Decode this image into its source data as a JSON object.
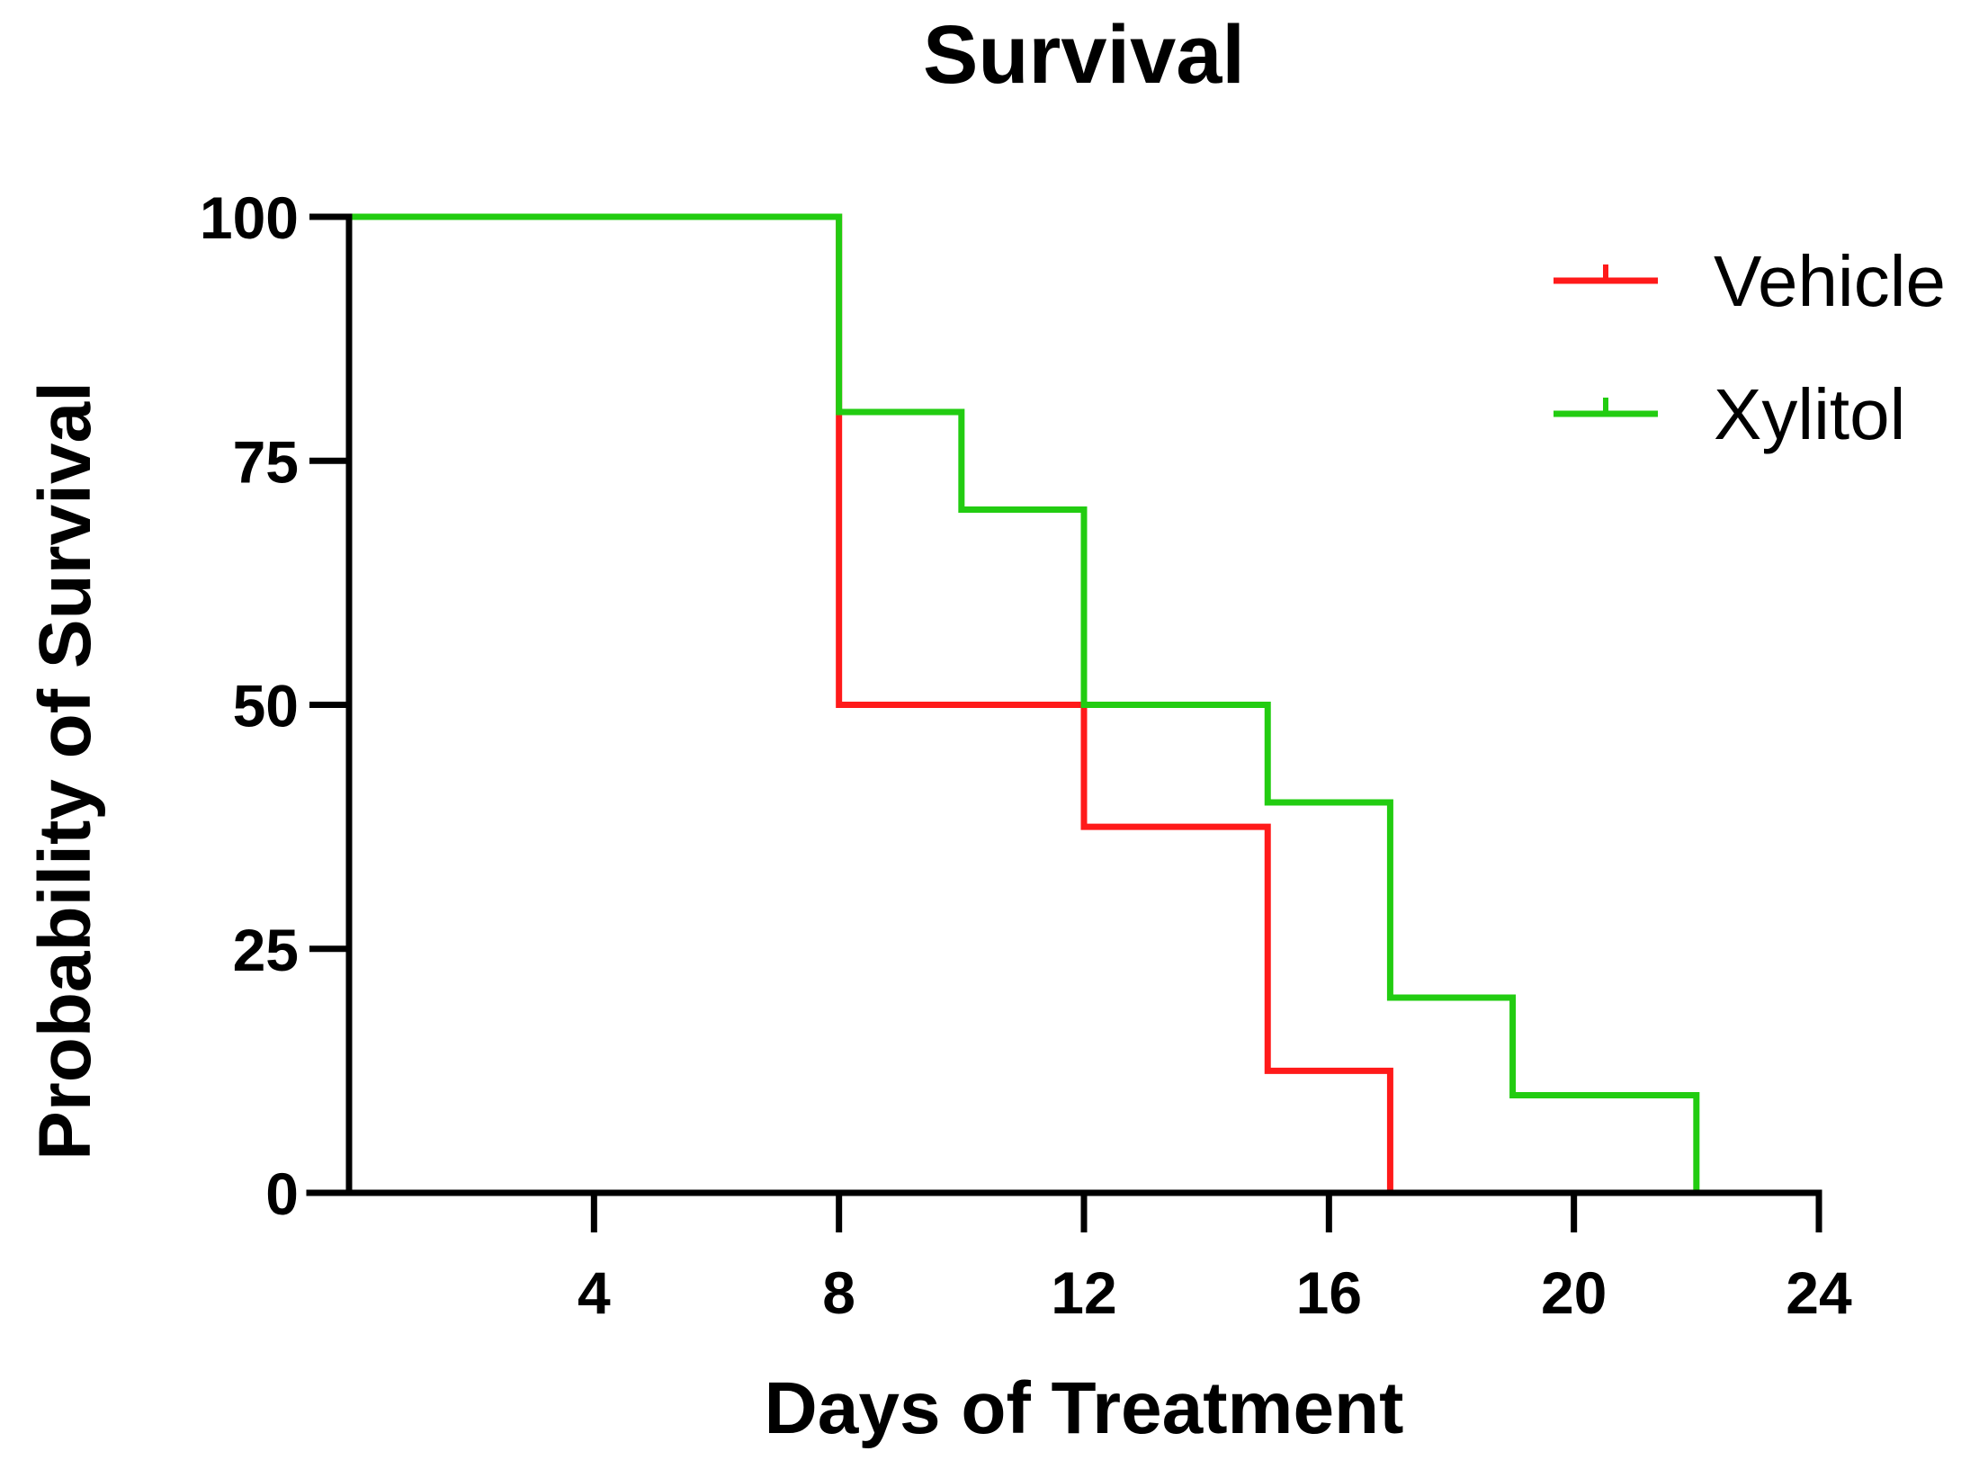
{
  "chart_data": {
    "type": "line",
    "subtype": "kaplan-meier-step",
    "title": "Survival",
    "xlabel": "Days of Treatment",
    "ylabel": "Probability of Survival",
    "xlim": [
      0,
      24
    ],
    "ylim": [
      0,
      100
    ],
    "xticks": [
      4,
      8,
      12,
      16,
      20,
      24
    ],
    "yticks": [
      0,
      25,
      50,
      75,
      100
    ],
    "grid": false,
    "legend_position": "top-right",
    "series": [
      {
        "name": "Vehicle",
        "color": "#ff1a1a",
        "x": [
          0,
          8,
          12,
          15,
          17
        ],
        "y": [
          100,
          50,
          37.5,
          12.5,
          0
        ]
      },
      {
        "name": "Xylitol",
        "color": "#22cc11",
        "x": [
          0,
          8,
          10,
          12,
          15,
          17,
          19,
          22
        ],
        "y": [
          100,
          80,
          70,
          50,
          40,
          20,
          10,
          0
        ]
      }
    ]
  }
}
